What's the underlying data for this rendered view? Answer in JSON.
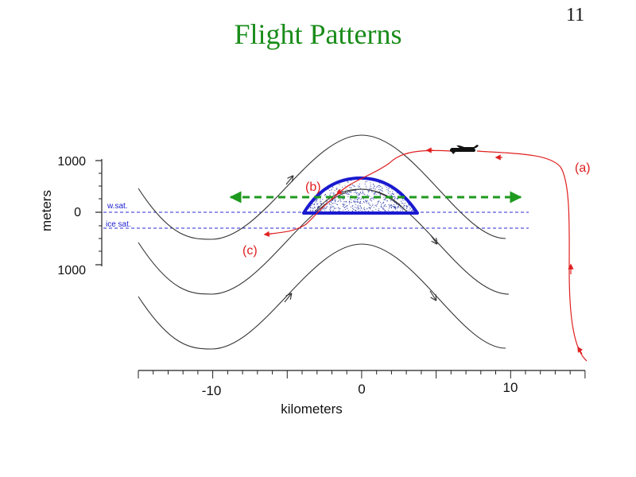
{
  "slide": {
    "title": "Flight Patterns",
    "number": "11"
  },
  "diagram": {
    "y_axis": {
      "label": "meters",
      "ticks": [
        "1000",
        "0",
        "1000"
      ]
    },
    "x_axis": {
      "label": "kilometers",
      "ticks": [
        "-10",
        "0",
        "10"
      ]
    },
    "levels": {
      "water": "w.sat.",
      "ice": "ice sat."
    },
    "paths": {
      "a": "(a)",
      "b": "(b)",
      "c": "(c)"
    },
    "colors": {
      "title": "#1a8c1a",
      "flight_track": "#e02020",
      "cloud": "#1a1ad0",
      "level_line": "#2a2ad8",
      "traverse": "#1e9a1e",
      "streamline": "#333333"
    },
    "icons": {
      "aircraft": "airplane-icon"
    }
  }
}
